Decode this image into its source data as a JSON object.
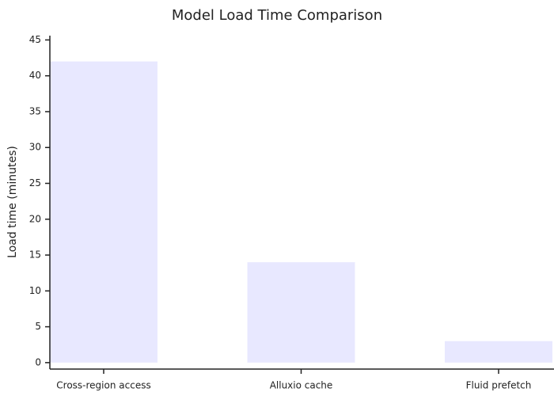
{
  "chart_data": {
    "type": "bar",
    "title": "Model Load Time Comparison",
    "y_label": "Load time (minutes)",
    "categories": [
      "Cross-region access",
      "Alluxio cache",
      "Fluid prefetch"
    ],
    "values": [
      42,
      14,
      3
    ],
    "color": "#e8e8ff",
    "ylim": [
      -0.9,
      45.6
    ],
    "yticks": [
      0,
      5,
      10,
      15,
      20,
      25,
      30,
      35,
      40,
      45
    ],
    "grid": false
  }
}
